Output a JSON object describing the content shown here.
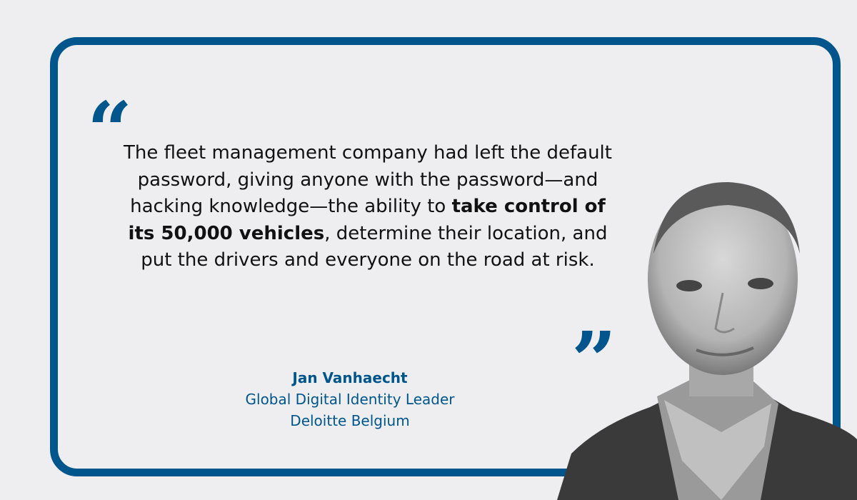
{
  "quote": {
    "before": "The fleet management company had left the default password, giving anyone with the password—and hacking knowledge—the ability to ",
    "emphasis": "take control of its 50,000 vehicles",
    "after": ", determine their location, and put the drivers and everyone on the road at risk.",
    "open_mark": "“",
    "close_mark": "”"
  },
  "attribution": {
    "name": "Jan Vanhaecht",
    "title": "Global Digital Identity Leader",
    "company": "Deloitte Belgium"
  },
  "colors": {
    "accent": "#00568c",
    "background": "#eeeef0",
    "text": "#111111"
  }
}
